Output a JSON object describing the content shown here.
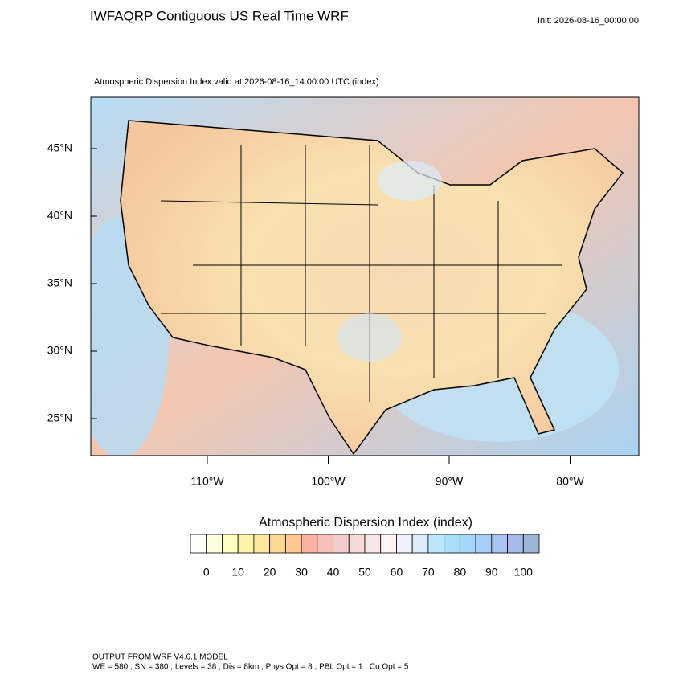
{
  "header": {
    "title": "IWFAQRP Contiguous US Real Time WRF",
    "init": "Init: 2026-08-16_00:00:00"
  },
  "map": {
    "subtitle": "Atmospheric Dispersion Index valid at 2026-08-16_14:00:00 UTC   (index)",
    "lat_ticks": [
      {
        "value": 45,
        "label": "45°N"
      },
      {
        "value": 40,
        "label": "40°N"
      },
      {
        "value": 35,
        "label": "35°N"
      },
      {
        "value": 30,
        "label": "30°N"
      },
      {
        "value": 25,
        "label": "25°N"
      }
    ],
    "lon_ticks": [
      {
        "value": -110,
        "label": "110°W"
      },
      {
        "value": -100,
        "label": "100°W"
      },
      {
        "value": -90,
        "label": "90°W"
      },
      {
        "value": -80,
        "label": "80°W"
      }
    ]
  },
  "colorbar": {
    "title": "Atmospheric Dispersion Index  (index)",
    "ticks": [
      0,
      10,
      20,
      30,
      40,
      50,
      60,
      70,
      80,
      90,
      100
    ],
    "colors": [
      "#ffffff",
      "#fffde0",
      "#fdfdc0",
      "#fcf4a8",
      "#fde8a0",
      "#fcd894",
      "#fcc890",
      "#fbb19e",
      "#f5c0b8",
      "#f2ccc8",
      "#f5dad6",
      "#f8e6e4",
      "#fdf3f3",
      "#f0f0fc",
      "#dcecfb",
      "#bce6fb",
      "#a8def8",
      "#a4d6f8",
      "#a6cdf6",
      "#a8c4f4",
      "#a8b8e8",
      "#9cb4d6"
    ]
  },
  "footer": {
    "lines": [
      "OUTPUT FROM WRF V4.6.1 MODEL",
      "WE = 580 ; SN = 380 ; Levels = 38 ; Dis = 8km ; Phys Opt = 8 ; PBL Opt = 1 ; Cu Opt = 5"
    ]
  }
}
